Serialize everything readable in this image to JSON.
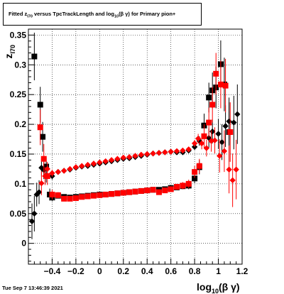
{
  "title": "Fitted  z_I70 versus TpcTrackLength and log_10(β γ) for Primary pion+",
  "title_parts": {
    "pre": "Fitted  z",
    "sub1": "I70",
    "mid": " versus TpcTrackLength and log",
    "sub2": "10",
    "post": "(β γ) for Primary pion+"
  },
  "timestamp": "Tue Sep  7 13:46:39 2021",
  "chart_data": {
    "type": "scatter",
    "xlabel": "log10(β γ)",
    "xlabel_main": "log",
    "xlabel_sub": "10",
    "xlabel_tail": "(β γ)",
    "ylabel": "zI70",
    "ylabel_main": "z",
    "ylabel_sub": "I70",
    "xlim": [
      -0.6,
      1.2
    ],
    "ylim": [
      -0.035,
      0.36
    ],
    "x_ticks": [
      -0.4,
      -0.2,
      0,
      0.2,
      0.4,
      0.6,
      0.8,
      1,
      1.2
    ],
    "x_tick_labels": [
      "−0.4",
      "−0.2",
      "0",
      "0.2",
      "0.4",
      "0.6",
      "0.8",
      "1",
      "1.2"
    ],
    "y_ticks": [
      0,
      0.05,
      0.1,
      0.15,
      0.2,
      0.25,
      0.3,
      0.35
    ],
    "y_tick_labels": [
      "0",
      "0.05",
      "0.1",
      "0.15",
      "0.2",
      "0.25",
      "0.3",
      "0.35"
    ],
    "grid": true,
    "colors": {
      "black_series": "#000000",
      "red_series": "#ff0000",
      "frame": "#000000",
      "grid": "#000000"
    },
    "series": [
      {
        "marker": "diamond",
        "color": "#000000",
        "points": [
          [
            -0.57,
            0.037,
            0.03
          ],
          [
            -0.55,
            0.05,
            0.03
          ],
          [
            -0.53,
            0.082,
            0.02
          ],
          [
            -0.51,
            0.086,
            0.02
          ],
          [
            -0.49,
            0.127,
            0.015
          ],
          [
            -0.47,
            0.123,
            0.015
          ],
          [
            -0.45,
            0.114,
            0.012
          ],
          [
            -0.4,
            0.113,
            0.006
          ],
          [
            -0.35,
            0.12,
            0.004
          ],
          [
            -0.3,
            0.122,
            0.003
          ],
          [
            -0.25,
            0.124,
            0.002
          ],
          [
            -0.2,
            0.127,
            0.002
          ],
          [
            -0.15,
            0.129,
            0.002
          ],
          [
            -0.1,
            0.13,
            0.002
          ],
          [
            -0.05,
            0.132,
            0.002
          ],
          [
            0,
            0.134,
            0.002
          ],
          [
            0.05,
            0.136,
            0.002
          ],
          [
            0.1,
            0.138,
            0.002
          ],
          [
            0.15,
            0.14,
            0.002
          ],
          [
            0.2,
            0.142,
            0.002
          ],
          [
            0.25,
            0.143,
            0.002
          ],
          [
            0.3,
            0.145,
            0.002
          ],
          [
            0.35,
            0.147,
            0.002
          ],
          [
            0.4,
            0.149,
            0.002
          ],
          [
            0.45,
            0.151,
            0.002
          ],
          [
            0.5,
            0.152,
            0.002
          ],
          [
            0.55,
            0.153,
            0.002
          ],
          [
            0.6,
            0.154,
            0.002
          ],
          [
            0.65,
            0.153,
            0.003
          ],
          [
            0.7,
            0.153,
            0.003
          ],
          [
            0.75,
            0.156,
            0.004
          ],
          [
            0.8,
            0.162,
            0.005
          ],
          [
            0.84,
            0.172,
            0.008
          ],
          [
            0.88,
            0.18,
            0.012
          ],
          [
            0.92,
            0.177,
            0.016
          ],
          [
            0.95,
            0.188,
            0.02
          ],
          [
            1.0,
            0.184,
            0.025
          ],
          [
            1.03,
            0.17,
            0.03
          ],
          [
            1.06,
            0.197,
            0.035
          ],
          [
            1.09,
            0.205,
            0.04
          ],
          [
            1.13,
            0.203,
            0.045
          ],
          [
            1.16,
            0.217,
            0.05
          ]
        ]
      },
      {
        "marker": "square",
        "color": "#000000",
        "points": [
          [
            -0.55,
            0.314,
            0.04
          ],
          [
            -0.5,
            0.233,
            0.03
          ],
          [
            -0.48,
            0.179,
            0.025
          ],
          [
            -0.45,
            0.129,
            0.015
          ],
          [
            -0.42,
            0.082,
            0.01
          ],
          [
            -0.4,
            0.077,
            0.006
          ],
          [
            -0.35,
            0.08,
            0.004
          ],
          [
            -0.3,
            0.078,
            0.003
          ],
          [
            -0.25,
            0.077,
            0.002
          ],
          [
            -0.2,
            0.078,
            0.002
          ],
          [
            -0.15,
            0.079,
            0.002
          ],
          [
            -0.1,
            0.08,
            0.002
          ],
          [
            -0.05,
            0.081,
            0.002
          ],
          [
            0,
            0.082,
            0.002
          ],
          [
            0.05,
            0.082,
            0.002
          ],
          [
            0.1,
            0.083,
            0.002
          ],
          [
            0.15,
            0.084,
            0.002
          ],
          [
            0.2,
            0.085,
            0.002
          ],
          [
            0.25,
            0.086,
            0.002
          ],
          [
            0.3,
            0.087,
            0.002
          ],
          [
            0.35,
            0.088,
            0.002
          ],
          [
            0.4,
            0.089,
            0.002
          ],
          [
            0.45,
            0.09,
            0.002
          ],
          [
            0.5,
            0.09,
            0.003
          ],
          [
            0.55,
            0.091,
            0.003
          ],
          [
            0.6,
            0.093,
            0.003
          ],
          [
            0.65,
            0.094,
            0.004
          ],
          [
            0.7,
            0.096,
            0.005
          ],
          [
            0.75,
            0.097,
            0.006
          ],
          [
            0.8,
            0.109,
            0.008
          ],
          [
            0.84,
            0.128,
            0.012
          ],
          [
            0.88,
            0.198,
            0.02
          ],
          [
            0.92,
            0.245,
            0.025
          ],
          [
            0.95,
            0.257,
            0.03
          ],
          [
            0.98,
            0.262,
            0.035
          ],
          [
            1.02,
            0.301,
            0.04
          ],
          [
            1.05,
            0.267,
            0.045
          ],
          [
            1.09,
            0.187,
            0.05
          ]
        ]
      },
      {
        "marker": "diamond",
        "color": "#ff0000",
        "points": [
          [
            -0.49,
            0.101,
            0.02
          ],
          [
            -0.46,
            0.113,
            0.015
          ],
          [
            -0.44,
            0.125,
            0.012
          ],
          [
            -0.4,
            0.118,
            0.006
          ],
          [
            -0.35,
            0.12,
            0.004
          ],
          [
            -0.3,
            0.122,
            0.003
          ],
          [
            -0.25,
            0.125,
            0.002
          ],
          [
            -0.2,
            0.128,
            0.002
          ],
          [
            -0.15,
            0.13,
            0.002
          ],
          [
            -0.1,
            0.132,
            0.002
          ],
          [
            -0.05,
            0.134,
            0.002
          ],
          [
            0,
            0.136,
            0.002
          ],
          [
            0.05,
            0.138,
            0.002
          ],
          [
            0.1,
            0.14,
            0.002
          ],
          [
            0.15,
            0.142,
            0.002
          ],
          [
            0.2,
            0.144,
            0.002
          ],
          [
            0.25,
            0.145,
            0.002
          ],
          [
            0.3,
            0.147,
            0.002
          ],
          [
            0.35,
            0.149,
            0.002
          ],
          [
            0.4,
            0.15,
            0.002
          ],
          [
            0.45,
            0.151,
            0.002
          ],
          [
            0.5,
            0.152,
            0.002
          ],
          [
            0.55,
            0.153,
            0.002
          ],
          [
            0.6,
            0.154,
            0.003
          ],
          [
            0.65,
            0.155,
            0.003
          ],
          [
            0.7,
            0.156,
            0.003
          ],
          [
            0.75,
            0.158,
            0.004
          ],
          [
            0.8,
            0.168,
            0.006
          ],
          [
            0.83,
            0.176,
            0.008
          ],
          [
            0.86,
            0.168,
            0.01
          ],
          [
            0.9,
            0.16,
            0.014
          ],
          [
            0.94,
            0.172,
            0.018
          ],
          [
            0.97,
            0.173,
            0.022
          ],
          [
            1.01,
            0.147,
            0.028
          ],
          [
            1.05,
            0.155,
            0.035
          ],
          [
            1.09,
            0.124,
            0.04
          ],
          [
            1.12,
            0.106,
            0.045
          ],
          [
            1.15,
            0.124,
            0.05
          ]
        ]
      },
      {
        "marker": "square",
        "color": "#ff0000",
        "points": [
          [
            -0.5,
            0.195,
            0.03
          ],
          [
            -0.47,
            0.142,
            0.025
          ],
          [
            -0.44,
            0.113,
            0.015
          ],
          [
            -0.4,
            0.082,
            0.008
          ],
          [
            -0.35,
            0.081,
            0.005
          ],
          [
            -0.3,
            0.075,
            0.004
          ],
          [
            -0.25,
            0.075,
            0.003
          ],
          [
            -0.2,
            0.076,
            0.002
          ],
          [
            -0.15,
            0.078,
            0.002
          ],
          [
            -0.1,
            0.079,
            0.002
          ],
          [
            -0.05,
            0.08,
            0.002
          ],
          [
            0,
            0.081,
            0.002
          ],
          [
            0.05,
            0.082,
            0.002
          ],
          [
            0.1,
            0.083,
            0.002
          ],
          [
            0.15,
            0.084,
            0.002
          ],
          [
            0.2,
            0.085,
            0.002
          ],
          [
            0.25,
            0.086,
            0.002
          ],
          [
            0.3,
            0.087,
            0.002
          ],
          [
            0.35,
            0.088,
            0.002
          ],
          [
            0.4,
            0.089,
            0.002
          ],
          [
            0.45,
            0.09,
            0.003
          ],
          [
            0.5,
            0.086,
            0.003
          ],
          [
            0.55,
            0.089,
            0.003
          ],
          [
            0.6,
            0.091,
            0.004
          ],
          [
            0.65,
            0.095,
            0.005
          ],
          [
            0.7,
            0.097,
            0.006
          ],
          [
            0.75,
            0.1,
            0.007
          ],
          [
            0.8,
            0.12,
            0.01
          ],
          [
            0.84,
            0.13,
            0.012
          ],
          [
            0.88,
            0.18,
            0.02
          ],
          [
            0.92,
            0.203,
            0.025
          ],
          [
            0.95,
            0.233,
            0.03
          ],
          [
            0.98,
            0.285,
            0.035
          ],
          [
            1.02,
            0.267,
            0.04
          ],
          [
            1.06,
            0.265,
            0.045
          ],
          [
            1.1,
            0.187,
            0.05
          ]
        ]
      }
    ]
  }
}
